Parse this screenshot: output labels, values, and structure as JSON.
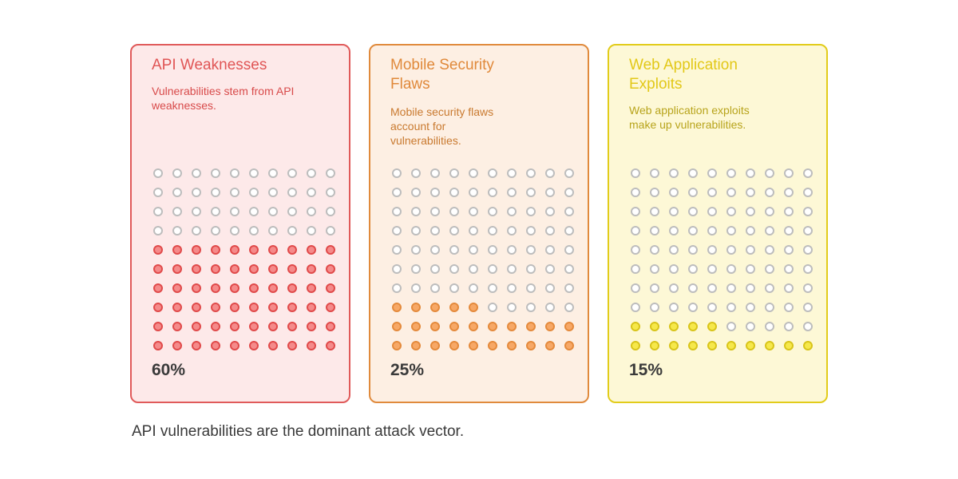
{
  "chart_data": {
    "type": "waffle",
    "categories": [
      "API Weaknesses",
      "Mobile Security Flaws",
      "Web Application Exploits"
    ],
    "values": [
      60,
      25,
      15
    ],
    "value_labels": [
      "60%",
      "25%",
      "15%"
    ],
    "descriptions": [
      "Vulnerabilities stem from API weaknesses.",
      "Mobile security flaws account for vulnerabilities.",
      "Web application exploits make up vulnerabilities."
    ],
    "grid": {
      "rows": 10,
      "cols": 10
    },
    "colors": {
      "api": {
        "border": "#e05a5a",
        "fill": "#fde9e9",
        "title": "#e05555",
        "text": "#d84a4a",
        "dot_fill": "#f58a8a",
        "dot_border": "#e04a4a"
      },
      "mobile": {
        "border": "#e08a3c",
        "fill": "#fdefe3",
        "title": "#e0893a",
        "text": "#c97a30",
        "dot_fill": "#f7a866",
        "dot_border": "#e48a3c"
      },
      "web": {
        "border": "#e2cc1a",
        "fill": "#fdf8d6",
        "title": "#e2c818",
        "text": "#b8a41c",
        "dot_fill": "#f6e84a",
        "dot_border": "#d8c41a"
      },
      "empty_dot_border": "#bdbdbd"
    }
  },
  "caption": "API vulnerabilities are the dominant attack vector."
}
